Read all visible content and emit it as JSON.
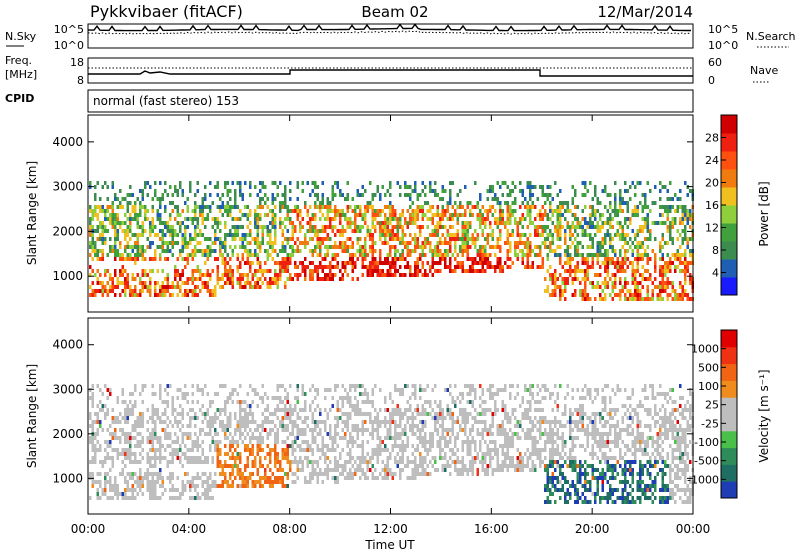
{
  "header": {
    "station": "Pykkvibaer (fitACF)",
    "beam": "Beam 02",
    "date": "12/Mar/2014"
  },
  "panels": {
    "noise": {
      "left_label": "N.Sky",
      "right_label": "N.Search",
      "left_ticks": [
        "10^5",
        "10^0"
      ],
      "right_ticks": [
        "10^5",
        "10^0"
      ]
    },
    "freq": {
      "left_label_1": "Freq.",
      "left_label_2": "[MHz]",
      "right_label": "Nave",
      "left_ticks": [
        "18",
        "8"
      ],
      "right_ticks": [
        "60",
        "0"
      ]
    },
    "cpid": {
      "label": "CPID",
      "text": "normal (fast stereo) 153"
    }
  },
  "colors": {
    "power_scale": [
      "#1a1aff",
      "#1e5fb4",
      "#3c8c50",
      "#3fa03c",
      "#8fcf3c",
      "#f0c020",
      "#f07c10",
      "#ff5010",
      "#f02010",
      "#d00000"
    ],
    "velocity_scale": [
      "#1e3cb4",
      "#1e6e64",
      "#2e8c5a",
      "#4ac04a",
      "#bebebe",
      "#bebebe",
      "#f08c1e",
      "#f06414",
      "#f03214",
      "#e00000"
    ]
  },
  "chart_data": [
    {
      "type": "heatmap",
      "name": "power",
      "ylabel": "Slant Range [km]",
      "xlim": [
        "00:00",
        "24:00"
      ],
      "ylim": [
        200,
        4600
      ],
      "y_ticks": [
        "1000",
        "2000",
        "3000",
        "4000"
      ],
      "colorbar_label": "Power [dB]",
      "colorbar_ticks": [
        "4",
        "8",
        "12",
        "16",
        "20",
        "24",
        "28"
      ],
      "colorbar_range": [
        0,
        32
      ]
    },
    {
      "type": "heatmap",
      "name": "velocity",
      "ylabel": "Slant Range [km]",
      "xlabel": "Time UT",
      "xlim": [
        "00:00",
        "24:00"
      ],
      "ylim": [
        200,
        4600
      ],
      "x_ticks": [
        "00:00",
        "04:00",
        "08:00",
        "12:00",
        "16:00",
        "20:00",
        "00:00"
      ],
      "y_ticks": [
        "1000",
        "2000",
        "3000",
        "4000"
      ],
      "colorbar_label": "Velocity [m s⁻¹]",
      "colorbar_ticks": [
        "1000",
        "500",
        "100",
        "25",
        "-25",
        "-100",
        "-500",
        "-1000"
      ]
    }
  ]
}
